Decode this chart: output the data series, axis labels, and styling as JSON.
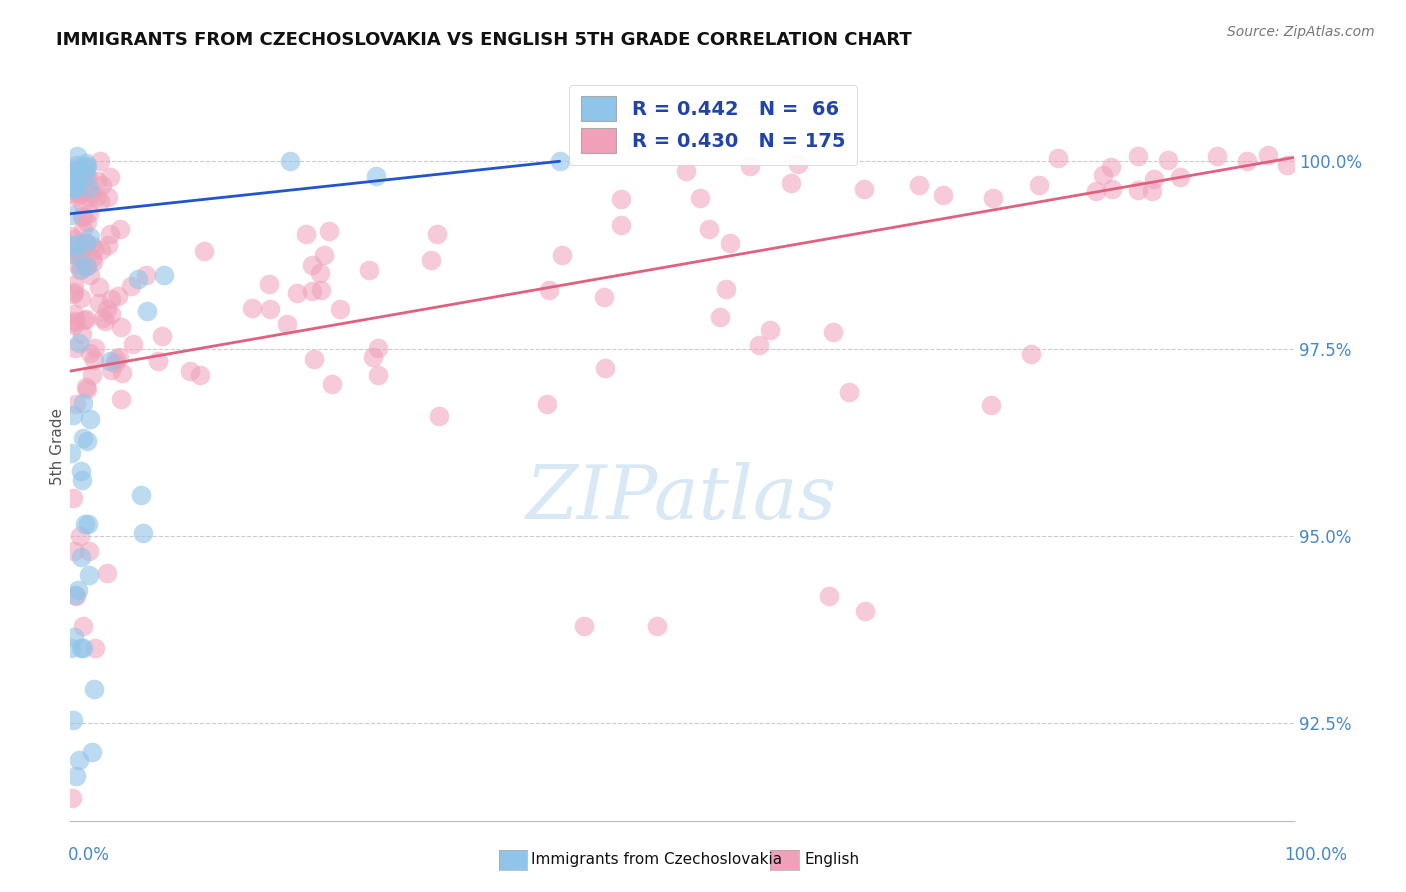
{
  "title": "IMMIGRANTS FROM CZECHOSLOVAKIA VS ENGLISH 5TH GRADE CORRELATION CHART",
  "source": "Source: ZipAtlas.com",
  "ylabel": "5th Grade",
  "ylabel_ticks": [
    92.5,
    95.0,
    97.5,
    100.0
  ],
  "ylabel_tick_labels": [
    "92.5%",
    "95.0%",
    "97.5%",
    "100.0%"
  ],
  "xmin": 0.0,
  "xmax": 100.0,
  "ymin": 91.2,
  "ymax": 101.2,
  "legend_blue_R": "0.442",
  "legend_blue_N": "66",
  "legend_pink_R": "0.430",
  "legend_pink_N": "175",
  "legend_label_blue": "Immigrants from Czechoslovakia",
  "legend_label_pink": "English",
  "blue_color": "#90C4E8",
  "pink_color": "#F0A0B8",
  "blue_line_color": "#2255CC",
  "pink_line_color": "#E06080",
  "watermark_text": "ZIPatlas",
  "watermark_color": "#D8E8F4",
  "blue_line_x0": 0.0,
  "blue_line_y0": 99.3,
  "blue_line_x1": 40.0,
  "blue_line_y1": 100.0,
  "pink_line_x0": 0.0,
  "pink_line_y0": 97.2,
  "pink_line_x1": 100.0,
  "pink_line_y1": 100.05
}
